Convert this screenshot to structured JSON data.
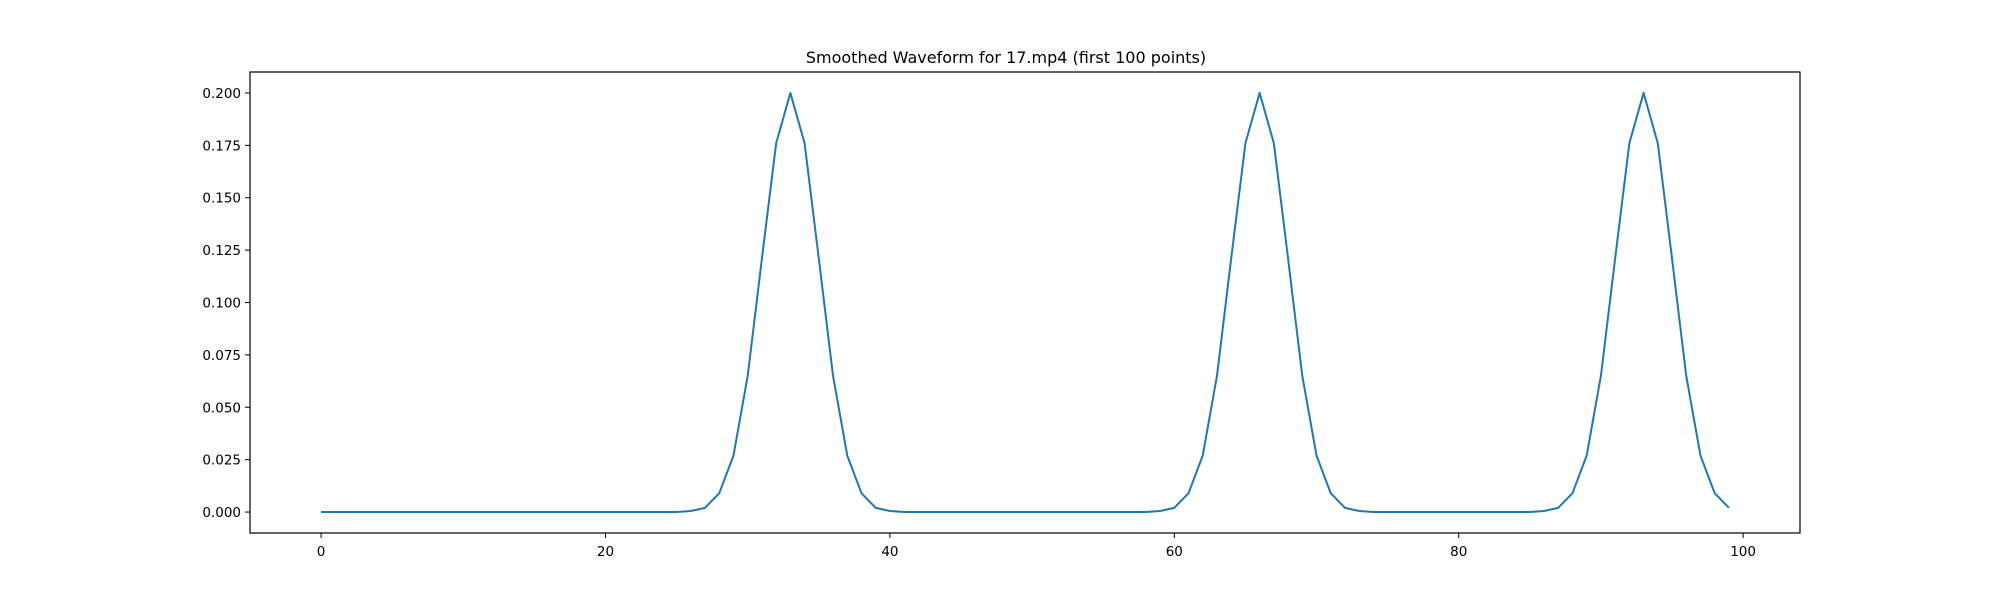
{
  "chart_data": {
    "type": "line",
    "title": "Smoothed Waveform for 17.mp4 (first 100 points)",
    "xlabel": "",
    "ylabel": "",
    "xlim": [
      -5,
      104
    ],
    "ylim": [
      -0.01,
      0.21
    ],
    "xticks": [
      0,
      20,
      40,
      60,
      80,
      100
    ],
    "xtick_labels": [
      "0",
      "20",
      "40",
      "60",
      "80",
      "100"
    ],
    "yticks": [
      0.0,
      0.025,
      0.05,
      0.075,
      0.1,
      0.125,
      0.15,
      0.175,
      0.2
    ],
    "ytick_labels": [
      "0.000",
      "0.025",
      "0.050",
      "0.075",
      "0.100",
      "0.125",
      "0.150",
      "0.175",
      "0.200"
    ],
    "grid": false,
    "line_color": "#1f77b4",
    "series": [
      {
        "x": [
          0,
          1,
          2,
          3,
          4,
          5,
          6,
          7,
          8,
          9,
          10,
          11,
          12,
          13,
          14,
          15,
          16,
          17,
          18,
          19,
          20,
          21,
          22,
          23,
          24,
          25,
          26,
          27,
          28,
          29,
          30,
          31,
          32,
          33,
          34,
          35,
          36,
          37,
          38,
          39,
          40,
          41,
          42,
          43,
          44,
          45,
          46,
          47,
          48,
          49,
          50,
          51,
          52,
          53,
          54,
          55,
          56,
          57,
          58,
          59,
          60,
          61,
          62,
          63,
          64,
          65,
          66,
          67,
          68,
          69,
          70,
          71,
          72,
          73,
          74,
          75,
          76,
          77,
          78,
          79,
          80,
          81,
          82,
          83,
          84,
          85,
          86,
          87,
          88,
          89,
          90,
          91,
          92,
          93,
          94,
          95,
          96,
          97,
          98,
          99
        ],
        "values": [
          0,
          0,
          0,
          0,
          0,
          0,
          0,
          0,
          0,
          0,
          0,
          0,
          0,
          0,
          0,
          0,
          0,
          0,
          0,
          0,
          0,
          0,
          0,
          0,
          0,
          0,
          0.0005,
          0.002,
          0.009,
          0.027,
          0.065,
          0.121,
          0.176,
          0.2,
          0.176,
          0.121,
          0.065,
          0.027,
          0.009,
          0.002,
          0.0005,
          0,
          0,
          0,
          0,
          0,
          0,
          0,
          0,
          0,
          0,
          0,
          0,
          0,
          0,
          0,
          0,
          0,
          0,
          0.0005,
          0.002,
          0.009,
          0.027,
          0.065,
          0.121,
          0.176,
          0.2,
          0.176,
          0.121,
          0.065,
          0.027,
          0.009,
          0.002,
          0.0005,
          0,
          0,
          0,
          0,
          0,
          0,
          0,
          0,
          0,
          0,
          0,
          0,
          0.0005,
          0.002,
          0.009,
          0.027,
          0.065,
          0.121,
          0.176,
          0.2,
          0.176,
          0.121,
          0.065,
          0.027,
          0.009,
          0.002
        ]
      }
    ]
  }
}
